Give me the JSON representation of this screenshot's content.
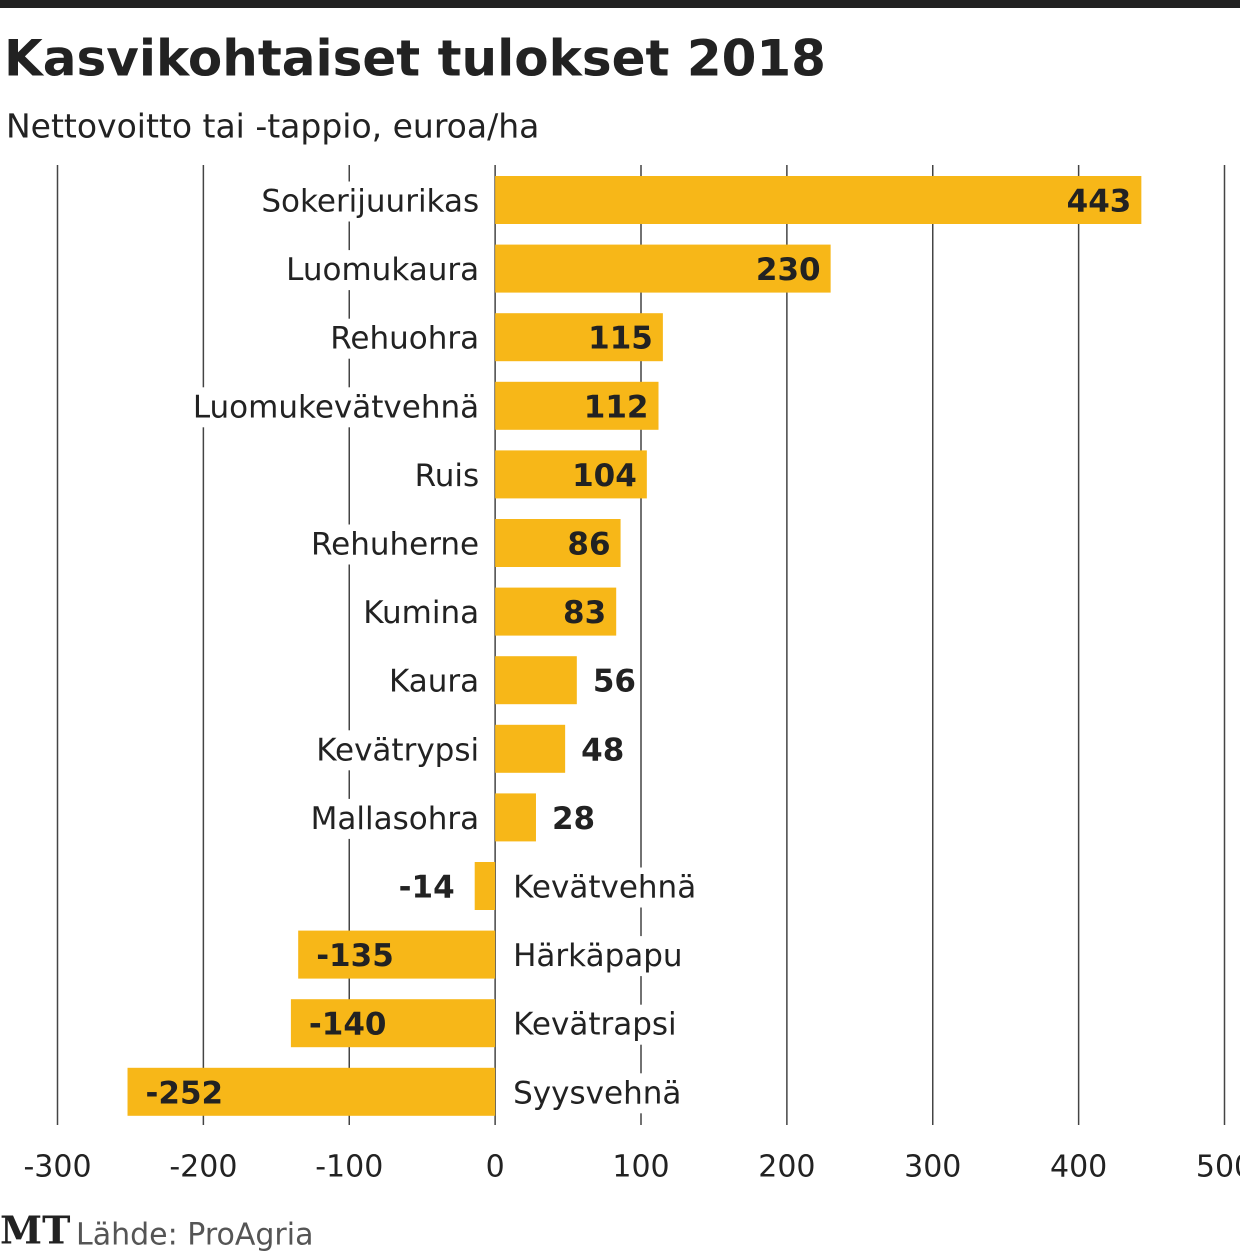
{
  "chart_data": {
    "type": "hbar",
    "title": "Kasvikohtaiset tulokset 2018",
    "subtitle": "Nettovoitto tai -tappio, euroa/ha",
    "categories": [
      "Sokerijuurikas",
      "Luomukaura",
      "Rehuohra",
      "Luomukevätvehnä",
      "Ruis",
      "Rehuherne",
      "Kumina",
      "Kaura",
      "Kevätrypsi",
      "Mallasohra",
      "Kevätvehnä",
      "Härkäpapu",
      "Kevätrapsi",
      "Syysvehnä"
    ],
    "values": [
      443,
      230,
      115,
      112,
      104,
      86,
      83,
      56,
      48,
      28,
      -14,
      -135,
      -140,
      -252
    ],
    "color": "#f7b718",
    "xlim": [
      -300,
      500
    ],
    "xticks": [
      -300,
      -200,
      -100,
      0,
      100,
      200,
      300,
      400,
      500
    ],
    "grid": true,
    "logo": "MT",
    "source": "Lähde: ProAgria"
  }
}
